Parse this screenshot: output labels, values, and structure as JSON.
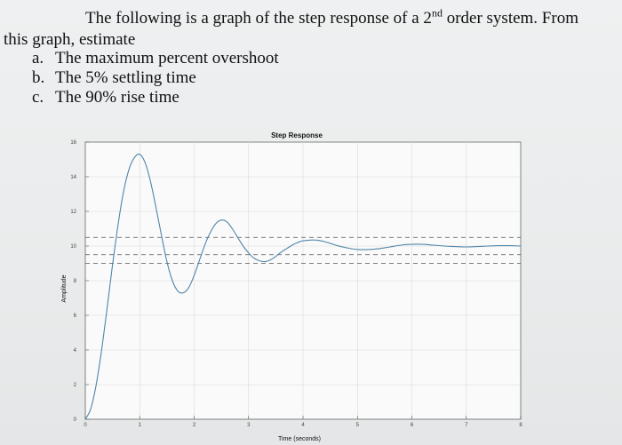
{
  "problem": {
    "intro_part1": "The following is a graph of the step response of a 2",
    "intro_sup": "nd",
    "intro_part2": " order system. From",
    "intro_line2": "this graph, estimate",
    "items": [
      {
        "label": "a.",
        "text": "The maximum percent overshoot"
      },
      {
        "label": "b.",
        "text": "The 5% settling time"
      },
      {
        "label": "c.",
        "text": "The 90% rise time"
      }
    ]
  },
  "chart_data": {
    "type": "line",
    "title": "Step Response",
    "xlabel": "Time (seconds)",
    "ylabel": "Amplitude",
    "xlim": [
      0,
      8
    ],
    "ylim": [
      0,
      16
    ],
    "xticks": [
      0,
      1,
      2,
      3,
      4,
      5,
      6,
      7,
      8
    ],
    "yticks": [
      0,
      2,
      4,
      6,
      8,
      10,
      12,
      14,
      16
    ],
    "ytick_labels_visible": [
      "0",
      "2",
      "4",
      "6",
      "8",
      "10",
      "12",
      "14",
      "16"
    ],
    "grid": true,
    "reference_lines": [
      10.5,
      9.5,
      9.0
    ],
    "series": [
      {
        "color": "#4f86a8",
        "x": [
          0,
          0.1,
          0.2,
          0.3,
          0.4,
          0.5,
          0.6,
          0.7,
          0.8,
          0.9,
          1.0,
          1.1,
          1.2,
          1.3,
          1.4,
          1.5,
          1.6,
          1.7,
          1.8,
          1.9,
          2.0,
          2.1,
          2.2,
          2.3,
          2.4,
          2.5,
          2.6,
          2.7,
          2.8,
          2.9,
          3.0,
          3.1,
          3.2,
          3.3,
          3.4,
          3.5,
          3.6,
          3.7,
          3.8,
          3.9,
          4.0,
          4.2,
          4.4,
          4.6,
          4.8,
          5.0,
          5.2,
          5.4,
          5.6,
          5.8,
          6.0,
          6.2,
          6.4,
          6.6,
          6.8,
          7.0,
          7.2,
          7.4,
          7.6,
          7.8,
          8.0
        ],
        "y": [
          0,
          0.6,
          2.0,
          4.0,
          6.4,
          8.9,
          11.2,
          13.1,
          14.4,
          15.1,
          15.3,
          14.8,
          13.7,
          12.2,
          10.6,
          9.1,
          8.0,
          7.4,
          7.3,
          7.6,
          8.3,
          9.2,
          10.1,
          10.8,
          11.3,
          11.5,
          11.4,
          11.0,
          10.5,
          10.0,
          9.6,
          9.3,
          9.15,
          9.1,
          9.2,
          9.4,
          9.65,
          9.85,
          10.05,
          10.2,
          10.3,
          10.35,
          10.25,
          10.05,
          9.9,
          9.8,
          9.8,
          9.85,
          9.95,
          10.05,
          10.1,
          10.1,
          10.05,
          10.0,
          9.97,
          9.95,
          9.97,
          10.0,
          10.02,
          10.02,
          10.0
        ]
      }
    ]
  }
}
